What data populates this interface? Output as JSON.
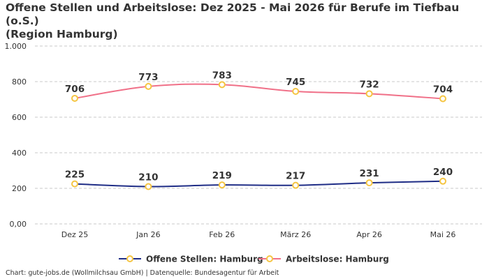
{
  "title_line1": "Offene Stellen und Arbeitslose: Dez 2025 - Mai 2026 für Berufe im Tiefbau (o.S.)",
  "title_line2": "(Region Hamburg)",
  "source": "Chart: gute-jobs.de (Wollmilchsau GmbH) | Datenquelle: Bundesagentur für Arbeit",
  "colors": {
    "offene_stellen": "#1f2d86",
    "arbeitslose": "#f07088",
    "marker_stroke": "#f5c542",
    "marker_fill": "#ffffff",
    "grid": "#c8c8c8",
    "text": "#333333"
  },
  "chart_data": {
    "type": "line",
    "categories": [
      "Dez 25",
      "Jan 26",
      "Feb 26",
      "März 26",
      "Apr 26",
      "Mai 26"
    ],
    "y_tick_labels": [
      "0,00",
      "200",
      "400",
      "600",
      "800",
      "1.000"
    ],
    "y_ticks": [
      0,
      200,
      400,
      600,
      800,
      1000
    ],
    "ylim": [
      0,
      1000
    ],
    "grid": true,
    "legend_position": "bottom",
    "series": [
      {
        "name": "Offene Stellen: Hamburg",
        "values": [
          225,
          210,
          219,
          217,
          231,
          240
        ],
        "labels": [
          "225",
          "210",
          "219",
          "217",
          "231",
          "240"
        ]
      },
      {
        "name": "Arbeitslose: Hamburg",
        "values": [
          706,
          773,
          783,
          745,
          732,
          704
        ],
        "labels": [
          "706",
          "773",
          "783",
          "745",
          "732",
          "704"
        ]
      }
    ]
  }
}
